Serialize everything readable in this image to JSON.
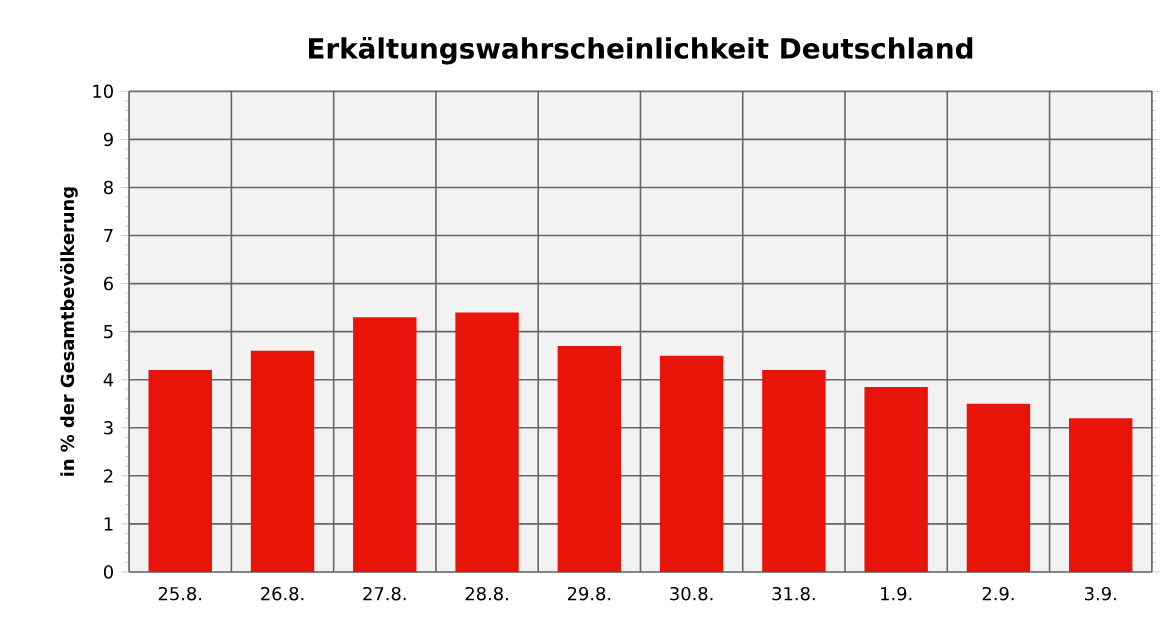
{
  "chart_data": {
    "type": "bar",
    "title": "Erkältungswahrscheinlichkeit  Deutschland",
    "ylabel": "in % der Gesamtbevölkerung",
    "categories": [
      "25.8.",
      "26.8.",
      "27.8.",
      "28.8.",
      "29.8.",
      "30.8.",
      "31.8.",
      "1.9.",
      "2.9.",
      "3.9."
    ],
    "values": [
      4.2,
      4.6,
      5.3,
      5.4,
      4.7,
      4.5,
      4.2,
      3.85,
      3.5,
      3.2
    ],
    "color": "#e8140a",
    "ylim": [
      0,
      10
    ],
    "yticks": [
      0,
      1,
      2,
      3,
      4,
      5,
      6,
      7,
      8,
      9,
      10
    ],
    "grid": true
  }
}
